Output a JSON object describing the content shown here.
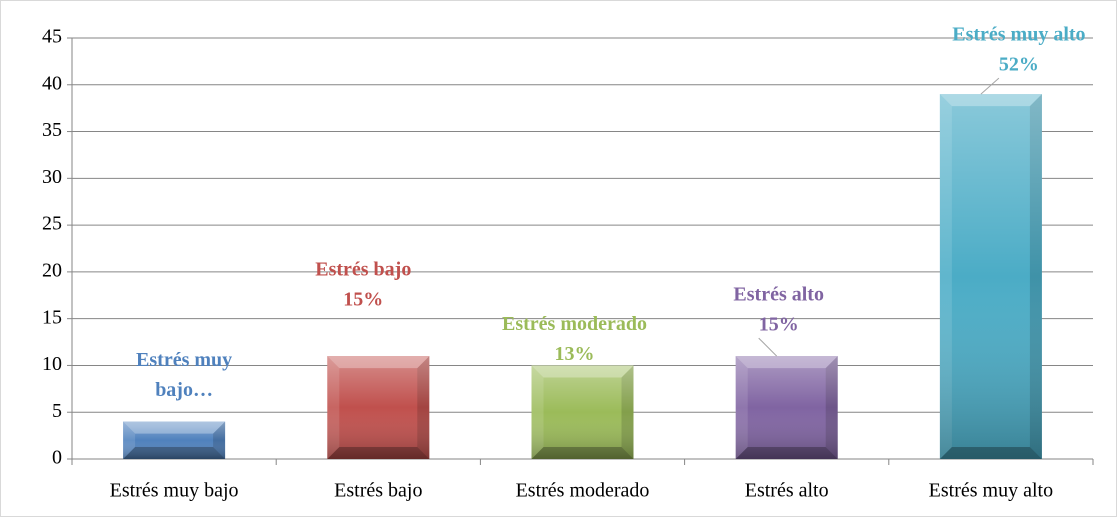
{
  "chart_data": {
    "type": "bar",
    "categories": [
      "Estrés muy bajo",
      "Estrés bajo",
      "Estrés moderado",
      "Estrés alto",
      "Estrés muy alto"
    ],
    "values": [
      4,
      11,
      10,
      11,
      39
    ],
    "colors": [
      "#4f81bd",
      "#c0504d",
      "#9bbb59",
      "#8064a2",
      "#4bacc6"
    ],
    "data_labels": [
      [
        "Estrés muy",
        "bajo…"
      ],
      [
        "Estrés bajo",
        "15%"
      ],
      [
        "Estrés moderado",
        "13%"
      ],
      [
        "Estrés alto",
        "15%"
      ],
      [
        "Estrés muy alto",
        "52%"
      ]
    ],
    "ylim": [
      0,
      45
    ],
    "yticks": [
      0,
      5,
      10,
      15,
      20,
      25,
      30,
      35,
      40,
      45
    ],
    "grid": true
  }
}
